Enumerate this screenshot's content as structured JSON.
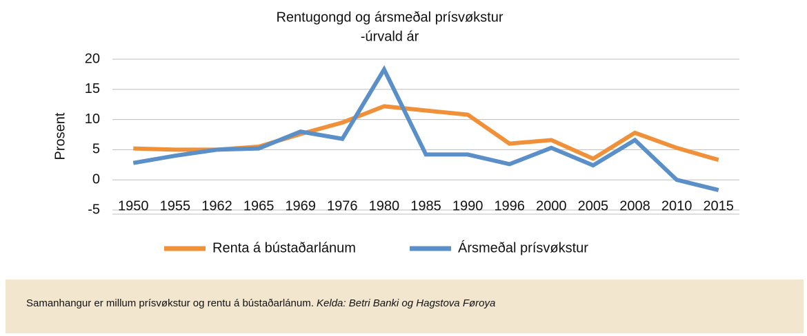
{
  "chart_data": {
    "type": "line",
    "title": "Rentugongd og ársmeðal prísvøkstur",
    "subtitle": "-úrvald ár",
    "y_label": "Prosent",
    "categories": [
      "1950",
      "1955",
      "1962",
      "1965",
      "1969",
      "1976",
      "1980",
      "1985",
      "1990",
      "1996",
      "2000",
      "2005",
      "2008",
      "2010",
      "2015"
    ],
    "series": [
      {
        "name": "Renta á bústaðarlánum",
        "color": "#f0913a",
        "values": [
          5.2,
          5.0,
          5.0,
          5.5,
          7.6,
          9.5,
          12.2,
          11.5,
          10.8,
          6.0,
          6.6,
          3.5,
          7.8,
          5.3,
          3.3
        ]
      },
      {
        "name": "Ársmeðal prísvøkstur",
        "color": "#5b8fc8",
        "values": [
          2.8,
          4.0,
          5.0,
          5.2,
          8.0,
          6.8,
          18.3,
          4.2,
          4.2,
          2.6,
          5.3,
          2.4,
          6.6,
          0.0,
          -1.7
        ]
      }
    ],
    "ylim": [
      -5,
      20
    ],
    "yticks": [
      -5,
      0,
      5,
      10,
      15,
      20
    ],
    "grid": true,
    "legend": "bottom"
  },
  "footer": {
    "text": "Samanhangur er millum prísvøkstur og rentu á bústaðarlánum.",
    "source": "Kelda: Betri Banki og Hagstova Føroya"
  }
}
